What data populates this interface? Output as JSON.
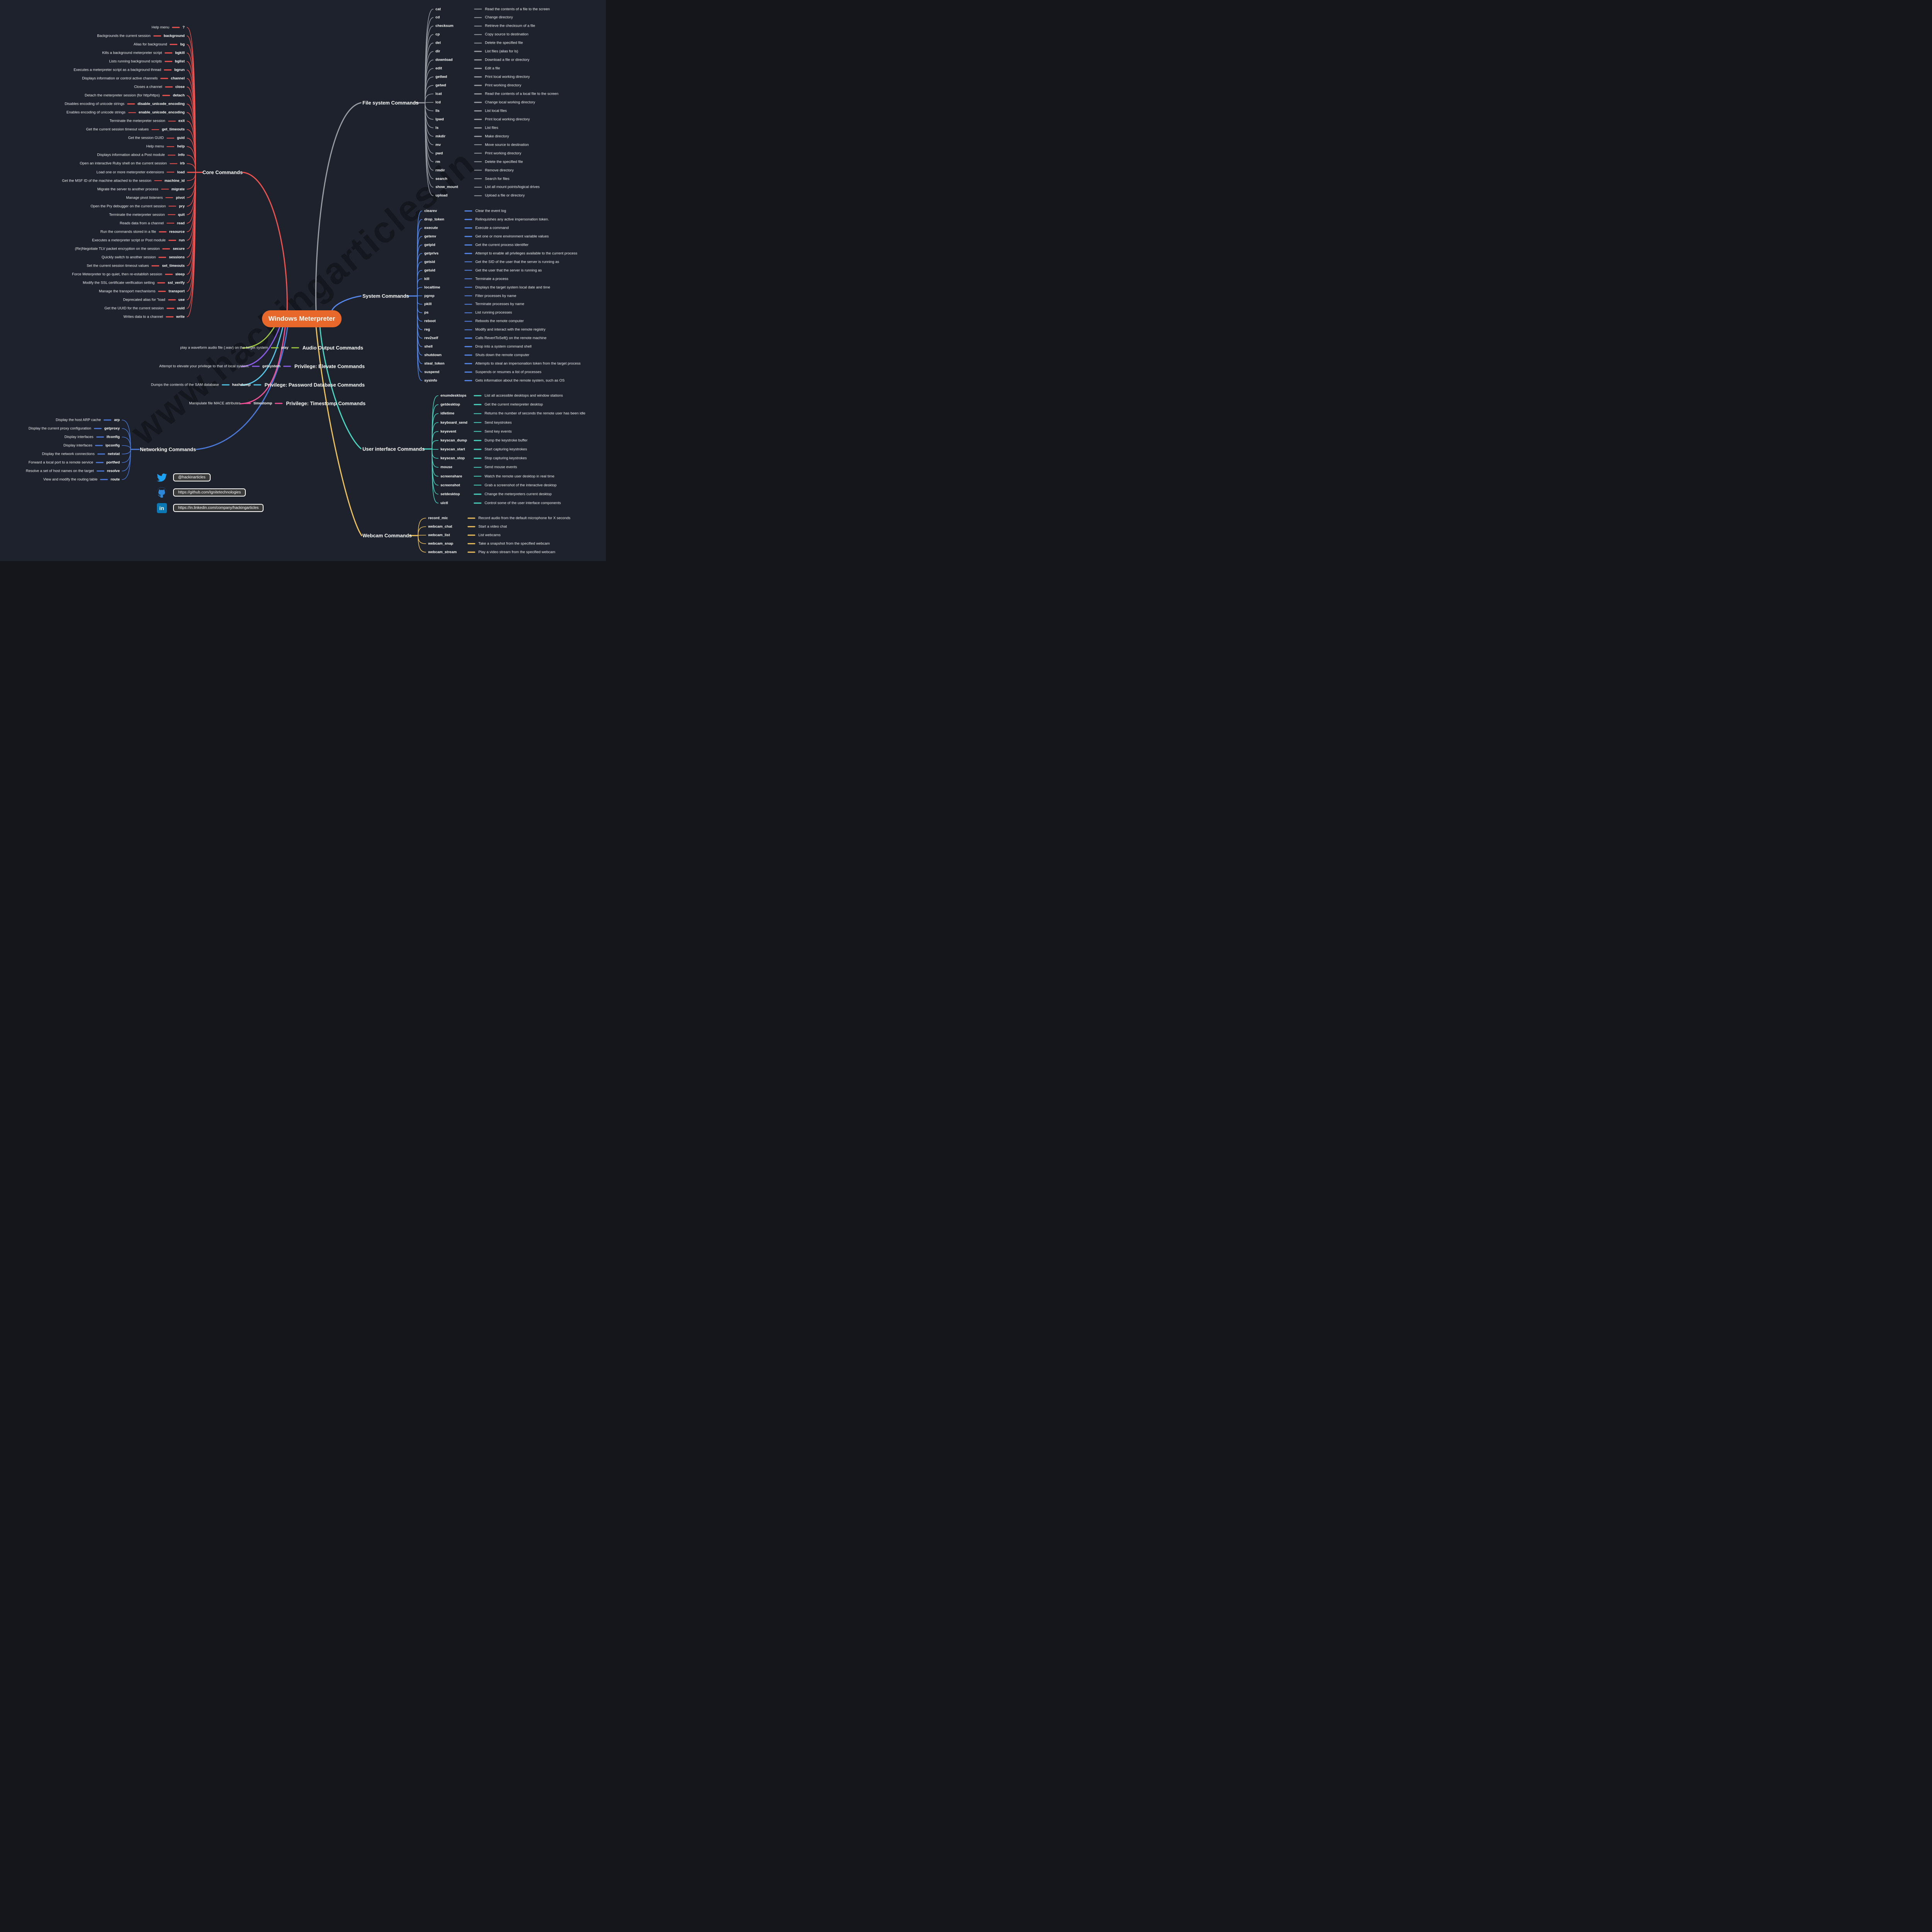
{
  "title": "Windows Meterpreter",
  "watermark": "www.hackingarticles.in",
  "colors": {
    "background": "#1e222c",
    "node_fill": "#e8682b",
    "text": "#ffffff"
  },
  "branches": [
    {
      "label": "Core Commands",
      "color": "#ef5350",
      "items": [
        {
          "desc": "Help menu",
          "cmd": "?"
        },
        {
          "desc": "Backgrounds the current session",
          "cmd": "background"
        },
        {
          "desc": "Alias for background",
          "cmd": "bg"
        },
        {
          "desc": "Kills a background meterpreter script",
          "cmd": "bgkill"
        },
        {
          "desc": "Lists running background scripts",
          "cmd": "bglist"
        },
        {
          "desc": "Executes a meterpreter script as a background thread",
          "cmd": "bgrun"
        },
        {
          "desc": "Displays information or control active channels",
          "cmd": "channel"
        },
        {
          "desc": "Closes a channel",
          "cmd": "close"
        },
        {
          "desc": "Detach the meterpreter session (for http/https)",
          "cmd": "detach"
        },
        {
          "desc": "Disables encoding of unicode strings",
          "cmd": "disable_unicode_encoding"
        },
        {
          "desc": "Enables encoding of unicode strings",
          "cmd": "enable_unicode_encoding"
        },
        {
          "desc": "Terminate the meterpreter session",
          "cmd": "exit"
        },
        {
          "desc": "Get the current session timeout values",
          "cmd": "get_timeouts"
        },
        {
          "desc": "Get the session GUID",
          "cmd": "guid"
        },
        {
          "desc": "Help menu",
          "cmd": "help"
        },
        {
          "desc": "Displays information about a Post module",
          "cmd": "info"
        },
        {
          "desc": "Open an interactive Ruby shell on the current session",
          "cmd": "irb"
        },
        {
          "desc": "Load one or more meterpreter extensions",
          "cmd": "load"
        },
        {
          "desc": "Get the MSF ID of the machine attached to the session",
          "cmd": "machine_id"
        },
        {
          "desc": "Migrate the server to another process",
          "cmd": "migrate"
        },
        {
          "desc": "Manage pivot listeners",
          "cmd": "pivot"
        },
        {
          "desc": "Open the Pry debugger on the current session",
          "cmd": "pry"
        },
        {
          "desc": "Terminate the meterpreter session",
          "cmd": "quit"
        },
        {
          "desc": "Reads data from a channel",
          "cmd": "read"
        },
        {
          "desc": "Run the commands stored in a file",
          "cmd": "resource"
        },
        {
          "desc": "Executes a meterpreter script or Post module",
          "cmd": "run"
        },
        {
          "desc": "(Re)Negotiate TLV packet encryption on the session",
          "cmd": "secure"
        },
        {
          "desc": "Quickly switch to another session",
          "cmd": "sessions"
        },
        {
          "desc": "Set the current session timeout values",
          "cmd": "set_timeouts"
        },
        {
          "desc": "Force Meterpreter to go quiet, then re-establish session",
          "cmd": "sleep"
        },
        {
          "desc": "Modify the SSL certificate verification setting",
          "cmd": "ssl_verify"
        },
        {
          "desc": "Manage the transport mechanisms",
          "cmd": "transport"
        },
        {
          "desc": "Deprecated alias for \"load",
          "cmd": "use"
        },
        {
          "desc": "Get the UUID for the current session",
          "cmd": "uuid"
        },
        {
          "desc": "Writes data to a channel",
          "cmd": "write"
        }
      ]
    },
    {
      "label": "File system Commands",
      "color": "#999da3",
      "items": [
        {
          "cmd": "cat",
          "desc": "Read the contents of a file to the screen"
        },
        {
          "cmd": "cd",
          "desc": "Change directory"
        },
        {
          "cmd": "checksum",
          "desc": "Retrieve the checksum of a file"
        },
        {
          "cmd": "cp",
          "desc": "Copy source to destination"
        },
        {
          "cmd": "del",
          "desc": "Delete the specified file"
        },
        {
          "cmd": "dir",
          "desc": "List files (alias for ls)"
        },
        {
          "cmd": "download",
          "desc": "Download a file or directory"
        },
        {
          "cmd": "edit",
          "desc": "Edit a file"
        },
        {
          "cmd": "getlwd",
          "desc": "Print local working directory"
        },
        {
          "cmd": "getwd",
          "desc": "Print working directory"
        },
        {
          "cmd": "lcat",
          "desc": "Read the contents of a local file to the screen"
        },
        {
          "cmd": "lcd",
          "desc": "Change local working directory"
        },
        {
          "cmd": "lls",
          "desc": "List local files"
        },
        {
          "cmd": "lpwd",
          "desc": "Print local working directory"
        },
        {
          "cmd": "ls",
          "desc": "List files"
        },
        {
          "cmd": "mkdir",
          "desc": "Make directory"
        },
        {
          "cmd": "mv",
          "desc": "Move source to destination"
        },
        {
          "cmd": "pwd",
          "desc": "Print working directory"
        },
        {
          "cmd": "rm",
          "desc": "Delete the specified file"
        },
        {
          "cmd": "rmdir",
          "desc": "Remove directory"
        },
        {
          "cmd": "search",
          "desc": "Search for files"
        },
        {
          "cmd": "show_mount",
          "desc": "List all mount points/logical drives"
        },
        {
          "cmd": "upload",
          "desc": "Upload a file or directory"
        }
      ]
    },
    {
      "label": "System Commands",
      "color": "#5488ec",
      "items": [
        {
          "cmd": "clearev",
          "desc": "Clear the event log"
        },
        {
          "cmd": "drop_token",
          "desc": "Relinquishes any active impersonation token."
        },
        {
          "cmd": "execute",
          "desc": "Execute a command"
        },
        {
          "cmd": "getenv",
          "desc": "Get one or more environment variable values"
        },
        {
          "cmd": "getpid",
          "desc": "Get the current process identifier"
        },
        {
          "cmd": "getprivs",
          "desc": "Attempt to enable all privileges available to the current process"
        },
        {
          "cmd": "getsid",
          "desc": "Get the SID of the user that the server is running as"
        },
        {
          "cmd": "getuid",
          "desc": "Get the user that the server is running as"
        },
        {
          "cmd": "kill",
          "desc": "Terminate a process"
        },
        {
          "cmd": "localtime",
          "desc": "Displays the target system local date and time"
        },
        {
          "cmd": "pgrep",
          "desc": "Filter processes by name"
        },
        {
          "cmd": "pkill",
          "desc": "Terminate processes by name"
        },
        {
          "cmd": "ps",
          "desc": "List running processes"
        },
        {
          "cmd": "reboot",
          "desc": "Reboots the remote computer"
        },
        {
          "cmd": "reg",
          "desc": "Modify and interact with the remote registry"
        },
        {
          "cmd": "rev2self",
          "desc": "Calls RevertToSelf() on the remote machine"
        },
        {
          "cmd": "shell",
          "desc": "Drop into a system command shell"
        },
        {
          "cmd": "shutdown",
          "desc": "Shuts down the remote computer"
        },
        {
          "cmd": "steal_token",
          "desc": "Attempts to steal an impersonation token from the target process"
        },
        {
          "cmd": "suspend",
          "desc": "Suspends or resumes a list of processes"
        },
        {
          "cmd": "sysinfo",
          "desc": "Gets information about the remote system, such as OS"
        }
      ]
    },
    {
      "label": "User interface Commands",
      "color": "#48d8c2",
      "items": [
        {
          "cmd": "enumdesktops",
          "desc": "List all accessible desktops and window stations"
        },
        {
          "cmd": "getdesktop",
          "desc": "Get the current meterpreter desktop"
        },
        {
          "cmd": "idletime",
          "desc": "Returns the number of seconds the remote user has been idle"
        },
        {
          "cmd": "keyboard_send",
          "desc": "Send keystrokes"
        },
        {
          "cmd": "keyevent",
          "desc": "Send key events"
        },
        {
          "cmd": "keyscan_dump",
          "desc": "Dump the keystroke buffer"
        },
        {
          "cmd": "keyscan_start",
          "desc": "Start capturing keystrokes"
        },
        {
          "cmd": "keyscan_stop",
          "desc": "Stop capturing keystrokes"
        },
        {
          "cmd": "mouse",
          "desc": "Send mouse events"
        },
        {
          "cmd": "screenshare",
          "desc": "Watch the remote user desktop in real time"
        },
        {
          "cmd": "screenshot",
          "desc": "Grab a screenshot of the interactive desktop"
        },
        {
          "cmd": "setdesktop",
          "desc": "Change the meterpreters current desktop"
        },
        {
          "cmd": "uictl",
          "desc": "Control some of the user interface components"
        }
      ]
    },
    {
      "label": "Webcam Commands",
      "color": "#eec35c",
      "items": [
        {
          "cmd": "record_mic",
          "desc": "Record audio from the default microphone for X seconds"
        },
        {
          "cmd": "webcam_chat",
          "desc": "Start a video chat"
        },
        {
          "cmd": "webcam_list",
          "desc": "List webcams"
        },
        {
          "cmd": "webcam_snap",
          "desc": "Take a snapshot from the specified webcam"
        },
        {
          "cmd": "webcam_stream",
          "desc": "Play a video stream from the specified webcam"
        }
      ]
    },
    {
      "label": "Networking Commands",
      "color": "#4a79d9",
      "items": [
        {
          "desc": "Display the host ARP cache",
          "cmd": "arp"
        },
        {
          "desc": "Display the current proxy configuration",
          "cmd": "getproxy"
        },
        {
          "desc": "Display interfaces",
          "cmd": "ifconfig"
        },
        {
          "desc": "Display interfaces",
          "cmd": "ipconfig"
        },
        {
          "desc": "Display the network connections",
          "cmd": "netstat"
        },
        {
          "desc": "Forward a local port to a remote service",
          "cmd": "portfwd"
        },
        {
          "desc": "Resolve a set of host names on the target",
          "cmd": "resolve"
        },
        {
          "desc": "View and modify the routing table",
          "cmd": "route"
        }
      ]
    },
    {
      "label": "Audio Output Commands",
      "color": "#9bc53e",
      "items": [
        {
          "desc": "play a waveform audio file (.wav) on the target system",
          "cmd": "play"
        }
      ]
    },
    {
      "label": "Privilege: Elevate Commands",
      "color": "#8a5ce8",
      "items": [
        {
          "desc": "Attempt to elevate your privilege to that of local system.",
          "cmd": "getsystem"
        }
      ]
    },
    {
      "label": "Privilege: Password Database Commands",
      "color": "#53c6e8",
      "items": [
        {
          "desc": "Dumps the contents of the SAM database",
          "cmd": "hashdump"
        }
      ]
    },
    {
      "label": "Privilege: Timestomp Commands",
      "color": "#ee5095",
      "items": [
        {
          "desc": "Manipulate file MACE attributes",
          "cmd": "timestomp"
        }
      ]
    }
  ],
  "social": [
    {
      "icon": "twitter-icon",
      "label": "@hackinarticles"
    },
    {
      "icon": "github-icon",
      "label": "https://github.com/Ignitetechnologies"
    },
    {
      "icon": "linkedin-icon",
      "label": "https://in.linkedin.com/company/hackingarticles",
      "icon_text": "in"
    }
  ]
}
